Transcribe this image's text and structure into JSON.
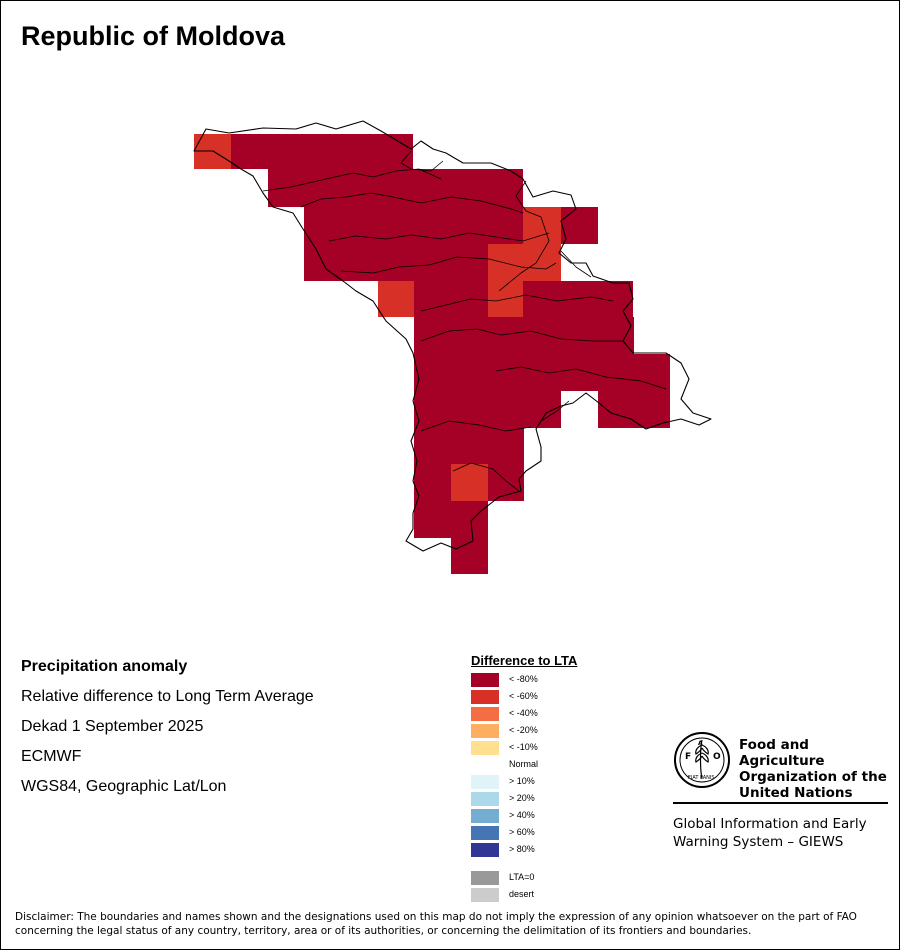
{
  "title": "Republic of Moldova",
  "info": {
    "heading": "Precipitation anomaly",
    "subtitle": "Relative difference to Long Term Average",
    "period": "Dekad 1 September 2025",
    "source": "ECMWF",
    "projection": "WGS84, Geographic Lat/Lon"
  },
  "legend": {
    "title": "Difference to LTA",
    "items": [
      {
        "label": "< -80%",
        "color": "#a50026"
      },
      {
        "label": "< -60%",
        "color": "#d73027"
      },
      {
        "label": "< -40%",
        "color": "#f46d43"
      },
      {
        "label": "< -20%",
        "color": "#fdae61"
      },
      {
        "label": "< -10%",
        "color": "#fee090"
      },
      {
        "label": "Normal",
        "color": "#ffffff"
      },
      {
        "label": "> 10%",
        "color": "#e0f3f8"
      },
      {
        "label": "> 20%",
        "color": "#abd9e9"
      },
      {
        "label": "> 40%",
        "color": "#74add1"
      },
      {
        "label": "> 60%",
        "color": "#4575b4"
      },
      {
        "label": "> 80%",
        "color": "#313695"
      }
    ],
    "extra": [
      {
        "label": "LTA=0",
        "color": "#999999"
      },
      {
        "label": "desert",
        "color": "#cccccc"
      }
    ]
  },
  "fao": {
    "logo_text": "FAO",
    "logo_motto": "FIAT PANIS",
    "name_line1": "Food and Agriculture",
    "name_line2": "Organization of the",
    "name_line3": "United Nations",
    "giews_line1": "Global Information and Early",
    "giews_line2": "Warning System – GIEWS"
  },
  "disclaimer_line1": "Disclaimer: The boundaries and names shown and the designations used on this map do not imply the expression of any opinion whatsoever on the part of FAO",
  "disclaimer_line2": "concerning the legal status of any country, territory, area or of its authorities, or concerning the delimitation of its frontiers and boundaries."
}
